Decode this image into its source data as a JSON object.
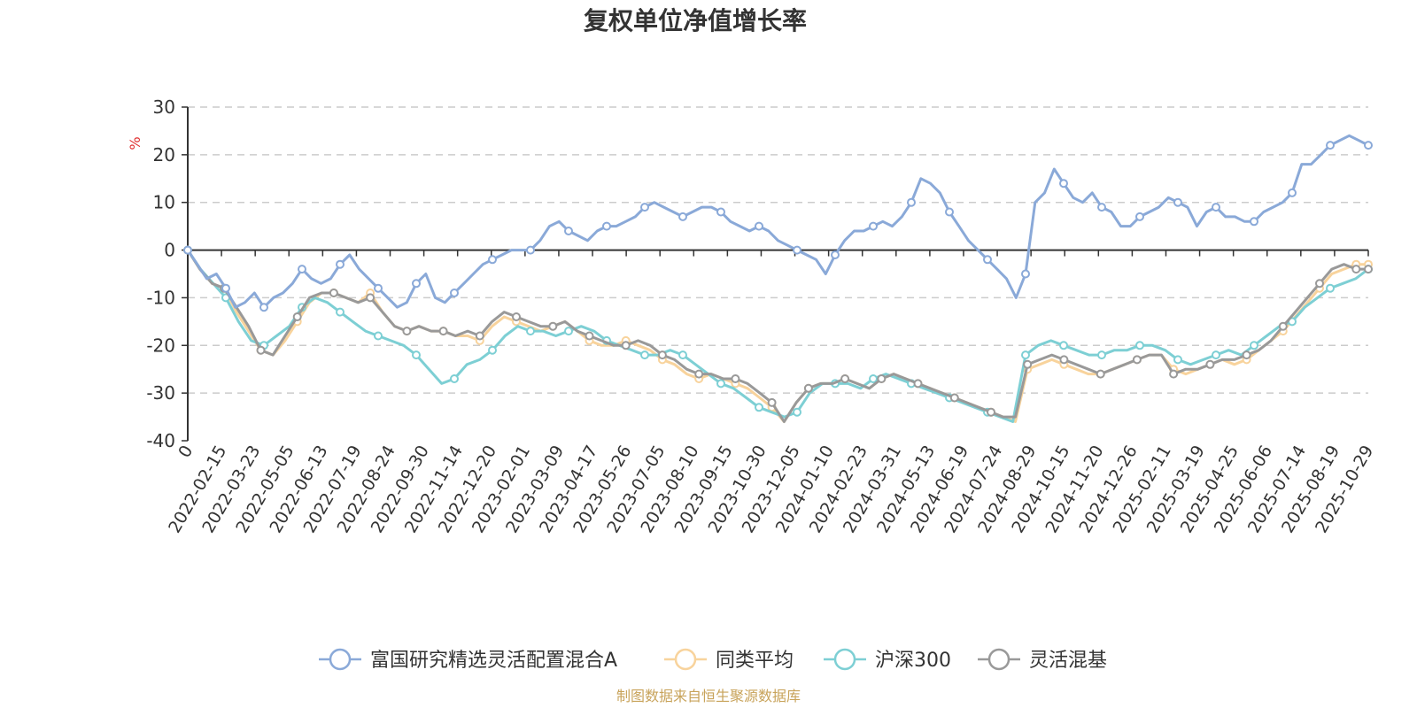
{
  "chart_data": {
    "type": "line",
    "title": "复权单位净值增长率",
    "ylabel": "%",
    "ylim": [
      -40,
      30
    ],
    "yticks": [
      "30",
      "20",
      "10",
      "0",
      "-10",
      "-20",
      "-30",
      "-40"
    ],
    "x_ticks": [
      "0",
      "2022-02-15",
      "2022-03-23",
      "2022-05-05",
      "2022-06-13",
      "2022-07-19",
      "2022-08-24",
      "2022-09-30",
      "2022-11-14",
      "2022-12-20",
      "2023-02-01",
      "2023-03-09",
      "2023-04-17",
      "2023-05-26",
      "2023-07-05",
      "2023-08-10",
      "2023-09-15",
      "2023-10-30",
      "2023-12-05",
      "2024-01-10",
      "2024-02-23",
      "2024-03-31",
      "2024-05-13",
      "2024-06-19",
      "2024-07-24",
      "2024-08-29",
      "2024-10-15",
      "2024-11-20",
      "2024-12-26",
      "2025-02-11",
      "2025-03-19",
      "2025-04-25",
      "2025-06-06",
      "2025-07-14",
      "2025-08-19",
      "2025-10-29"
    ],
    "grid": "horizontal-dashed",
    "legend_position": "bottom",
    "series": [
      {
        "name": "富国研究精选灵活配置混合A",
        "color": "#8AA9D8",
        "values": [
          0,
          -3,
          -6,
          -5,
          -8,
          -12,
          -11,
          -9,
          -12,
          -10,
          -9,
          -7,
          -4,
          -6,
          -7,
          -6,
          -3,
          -1,
          -4,
          -6,
          -8,
          -10,
          -12,
          -11,
          -7,
          -5,
          -10,
          -11,
          -9,
          -7,
          -5,
          -3,
          -2,
          -1,
          0,
          0,
          0,
          2,
          5,
          6,
          4,
          3,
          2,
          4,
          5,
          5,
          6,
          7,
          9,
          10,
          9,
          8,
          7,
          8,
          9,
          9,
          8,
          6,
          5,
          4,
          5,
          4,
          2,
          1,
          0,
          -1,
          -2,
          -5,
          -1,
          2,
          4,
          4,
          5,
          6,
          5,
          7,
          10,
          15,
          14,
          12,
          8,
          5,
          2,
          0,
          -2,
          -4,
          -6,
          -10,
          -5,
          10,
          12,
          17,
          14,
          11,
          10,
          12,
          9,
          8,
          5,
          5,
          7,
          8,
          9,
          11,
          10,
          9,
          5,
          8,
          9,
          7,
          7,
          6,
          6,
          8,
          9,
          10,
          12,
          18,
          18,
          20,
          22,
          23,
          24,
          23,
          22
        ]
      },
      {
        "name": "同类平均",
        "color": "#F8D39C",
        "values": [
          0,
          -4,
          -7,
          -8,
          -13,
          -17,
          -21,
          -22,
          -19,
          -15,
          -11,
          -9,
          -9,
          -10,
          -11,
          -9,
          -13,
          -16,
          -17,
          -16,
          -17,
          -17,
          -18,
          -18,
          -19,
          -16,
          -14,
          -15,
          -16,
          -17,
          -16,
          -15,
          -17,
          -19,
          -20,
          -20,
          -19,
          -20,
          -21,
          -23,
          -24,
          -26,
          -27,
          -26,
          -27,
          -28,
          -29,
          -31,
          -33,
          -36,
          -32,
          -29,
          -28,
          -28,
          -27,
          -28,
          -29,
          -27,
          -26,
          -27,
          -28,
          -29,
          -30,
          -31,
          -32,
          -33,
          -34,
          -35,
          -36,
          -25,
          -24,
          -23,
          -24,
          -25,
          -26,
          -26,
          -25,
          -24,
          -23,
          -22,
          -22,
          -25,
          -26,
          -25,
          -24,
          -23,
          -24,
          -23,
          -21,
          -19,
          -17,
          -14,
          -11,
          -8,
          -5,
          -4,
          -3,
          -3
        ]
      },
      {
        "name": "沪深300",
        "color": "#7DCFD4",
        "values": [
          0,
          -4,
          -7,
          -10,
          -15,
          -19,
          -20,
          -18,
          -16,
          -12,
          -10,
          -11,
          -13,
          -15,
          -17,
          -18,
          -19,
          -20,
          -22,
          -25,
          -28,
          -27,
          -24,
          -23,
          -21,
          -18,
          -16,
          -17,
          -17,
          -18,
          -17,
          -16,
          -17,
          -19,
          -20,
          -21,
          -22,
          -22,
          -21,
          -22,
          -24,
          -26,
          -28,
          -29,
          -31,
          -33,
          -34,
          -35,
          -34,
          -30,
          -28,
          -28,
          -28,
          -29,
          -27,
          -26,
          -27,
          -28,
          -29,
          -30,
          -31,
          -32,
          -33,
          -34,
          -35,
          -36,
          -22,
          -20,
          -19,
          -20,
          -21,
          -22,
          -22,
          -21,
          -21,
          -20,
          -20,
          -21,
          -23,
          -24,
          -23,
          -22,
          -21,
          -22,
          -20,
          -18,
          -16,
          -15,
          -12,
          -10,
          -8,
          -7,
          -6,
          -4
        ]
      },
      {
        "name": "灵活混基",
        "color": "#999999",
        "values": [
          0,
          -4,
          -7,
          -8,
          -12,
          -16,
          -21,
          -22,
          -18,
          -14,
          -10,
          -9,
          -9,
          -10,
          -11,
          -10,
          -13,
          -16,
          -17,
          -16,
          -17,
          -17,
          -18,
          -17,
          -18,
          -15,
          -13,
          -14,
          -15,
          -16,
          -16,
          -15,
          -17,
          -18,
          -19,
          -20,
          -20,
          -19,
          -20,
          -22,
          -23,
          -25,
          -26,
          -26,
          -27,
          -27,
          -28,
          -30,
          -32,
          -36,
          -32,
          -29,
          -28,
          -28,
          -27,
          -28,
          -29,
          -27,
          -26,
          -27,
          -28,
          -29,
          -30,
          -31,
          -32,
          -33,
          -34,
          -35,
          -35,
          -24,
          -23,
          -22,
          -23,
          -24,
          -25,
          -26,
          -25,
          -24,
          -23,
          -22,
          -22,
          -26,
          -25,
          -25,
          -24,
          -23,
          -23,
          -22,
          -21,
          -19,
          -16,
          -13,
          -10,
          -7,
          -4,
          -3,
          -4,
          -4
        ]
      }
    ]
  },
  "source_note": "制图数据来自恒生聚源数据库",
  "colors": {
    "axis": "#333333",
    "grid": "#cccccc",
    "unit": "#e03030",
    "source": "#C8A35A"
  }
}
